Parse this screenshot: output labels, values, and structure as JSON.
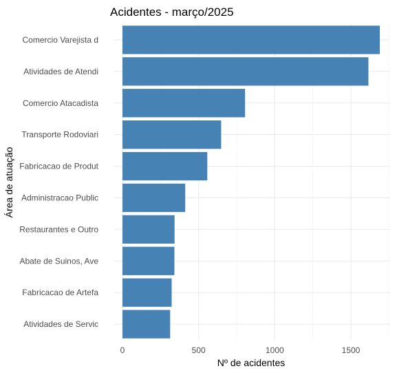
{
  "chart_data": {
    "type": "bar",
    "orientation": "horizontal",
    "title": "Acidentes - março/2025",
    "xlabel": "Nº de acidentes",
    "ylabel": "Área de atuação",
    "categories": [
      "Comercio Varejista d",
      "Atividades de Atendi",
      "Comercio Atacadista",
      "Transporte Rodoviari",
      "Fabricacao de Produt",
      "Administracao Public",
      "Restaurantes e Outro",
      "Abate de Suinos, Ave",
      "Fabricacao de Artefa",
      "Atividades de Servic"
    ],
    "values": [
      1690,
      1615,
      805,
      648,
      557,
      412,
      342,
      341,
      323,
      313
    ],
    "xticks": [
      "0",
      "500",
      "1000",
      "1500"
    ],
    "xlim": [
      0,
      1750
    ],
    "bar_color": "#4682b4",
    "grid": true,
    "legend": "none"
  }
}
